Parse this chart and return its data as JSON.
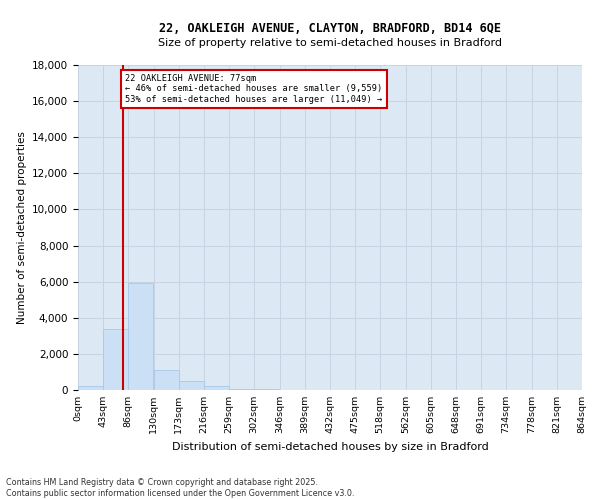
{
  "title_line1": "22, OAKLEIGH AVENUE, CLAYTON, BRADFORD, BD14 6QE",
  "title_line2": "Size of property relative to semi-detached houses in Bradford",
  "xlabel": "Distribution of semi-detached houses by size in Bradford",
  "ylabel": "Number of semi-detached properties",
  "property_size": 77,
  "annotation_line1": "22 OAKLEIGH AVENUE: 77sqm",
  "annotation_line2": "← 46% of semi-detached houses are smaller (9,559)",
  "annotation_line3": "53% of semi-detached houses are larger (11,049) →",
  "bin_edges": [
    0,
    43,
    86,
    130,
    173,
    216,
    259,
    302,
    346,
    389,
    432,
    475,
    518,
    562,
    605,
    648,
    691,
    734,
    778,
    821,
    864
  ],
  "bin_labels": [
    "0sqm",
    "43sqm",
    "86sqm",
    "130sqm",
    "173sqm",
    "216sqm",
    "259sqm",
    "302sqm",
    "346sqm",
    "389sqm",
    "432sqm",
    "475sqm",
    "518sqm",
    "562sqm",
    "605sqm",
    "648sqm",
    "691sqm",
    "734sqm",
    "778sqm",
    "821sqm",
    "864sqm"
  ],
  "bar_values": [
    200,
    3400,
    5900,
    1100,
    500,
    200,
    80,
    30,
    0,
    0,
    0,
    0,
    0,
    0,
    0,
    0,
    0,
    0,
    0,
    0
  ],
  "bar_color": "#cce0f5",
  "bar_edge_color": "#a8c8e8",
  "grid_color": "#c8d4e4",
  "background_color": "#dce8f4",
  "vline_color": "#cc0000",
  "ylim": [
    0,
    18000
  ],
  "yticks": [
    0,
    2000,
    4000,
    6000,
    8000,
    10000,
    12000,
    14000,
    16000,
    18000
  ],
  "footer_line1": "Contains HM Land Registry data © Crown copyright and database right 2025.",
  "footer_line2": "Contains public sector information licensed under the Open Government Licence v3.0."
}
